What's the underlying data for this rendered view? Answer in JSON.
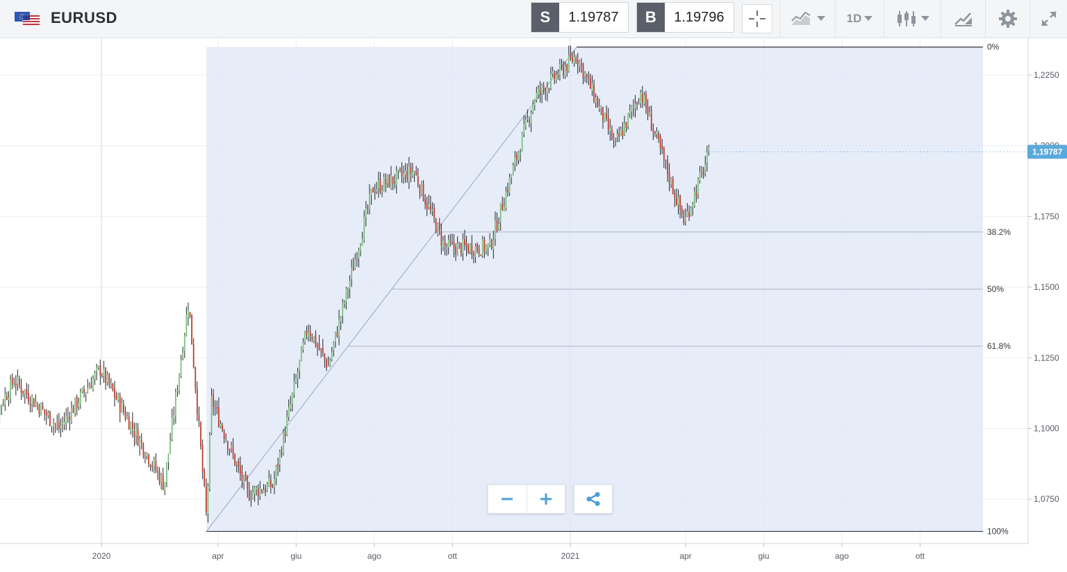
{
  "header": {
    "symbol": "EURUSD",
    "sell_label": "S",
    "sell_price": "1.19787",
    "buy_label": "B",
    "buy_price": "1.19796",
    "timeframe": "1D"
  },
  "icons": {
    "flag": "eu-us-flag-icon",
    "crosshair": "crosshair-icon",
    "chart_type": "area-chart-icon",
    "candles": "candlestick-icon",
    "draw": "drawing-tool-icon",
    "settings": "gear-icon",
    "fullscreen": "expand-icon",
    "zoom_out": "minus-icon",
    "zoom_in": "plus-icon",
    "share": "share-icon"
  },
  "colors": {
    "bull": "#7cc07c",
    "bear": "#c0392b",
    "fib_fill": "#dfe6f7",
    "price_tag": "#5aa9dc"
  },
  "chart_data": {
    "type": "candlestick",
    "instrument": "EURUSD",
    "current_price": 1.19787,
    "current_price_label": "1,19787",
    "y_ticks": [
      "1,2250",
      "1,2000",
      "1,1750",
      "1,1500",
      "1,1250",
      "1,1000",
      "1,0750"
    ],
    "y_tick_values": [
      1.225,
      1.2,
      1.175,
      1.15,
      1.125,
      1.1,
      1.075
    ],
    "ylim": [
      1.062,
      1.237
    ],
    "x_ticks": [
      "2020",
      "apr",
      "giu",
      "ago",
      "ott",
      "2021",
      "apr",
      "giu",
      "ago",
      "ott"
    ],
    "x_tick_dates": [
      "2020-01-01",
      "2020-04-01",
      "2020-06-01",
      "2020-08-01",
      "2020-10-01",
      "2021-01-01",
      "2021-04-01",
      "2021-06-01",
      "2021-08-01",
      "2021-10-01"
    ],
    "fibonacci": {
      "high": 1.2349,
      "low": 1.0636,
      "high_date": "2021-01-06",
      "low_date": "2020-03-23",
      "levels": [
        {
          "label": "0%",
          "value": 1.2349
        },
        {
          "label": "38.2%",
          "value": 1.1695
        },
        {
          "label": "50%",
          "value": 1.1493
        },
        {
          "label": "61.8%",
          "value": 1.1291
        },
        {
          "label": "100%",
          "value": 1.0636
        }
      ]
    },
    "path_anchors": [
      {
        "date": "2019-10-01",
        "close": 1.098
      },
      {
        "date": "2019-10-25",
        "close": 1.117
      },
      {
        "date": "2019-11-29",
        "close": 1.1
      },
      {
        "date": "2019-12-31",
        "close": 1.121
      },
      {
        "date": "2020-02-19",
        "close": 1.08
      },
      {
        "date": "2020-03-09",
        "close": 1.145
      },
      {
        "date": "2020-03-23",
        "close": 1.068
      },
      {
        "date": "2020-03-27",
        "close": 1.11
      },
      {
        "date": "2020-04-24",
        "close": 1.077
      },
      {
        "date": "2020-05-14",
        "close": 1.08
      },
      {
        "date": "2020-06-10",
        "close": 1.136
      },
      {
        "date": "2020-06-26",
        "close": 1.122
      },
      {
        "date": "2020-07-31",
        "close": 1.185
      },
      {
        "date": "2020-09-01",
        "close": 1.191
      },
      {
        "date": "2020-09-25",
        "close": 1.164
      },
      {
        "date": "2020-10-30",
        "close": 1.164
      },
      {
        "date": "2020-12-04",
        "close": 1.217
      },
      {
        "date": "2021-01-06",
        "close": 1.232
      },
      {
        "date": "2021-02-05",
        "close": 1.2
      },
      {
        "date": "2021-02-25",
        "close": 1.219
      },
      {
        "date": "2021-03-31",
        "close": 1.173
      },
      {
        "date": "2021-04-20",
        "close": 1.198
      }
    ]
  }
}
